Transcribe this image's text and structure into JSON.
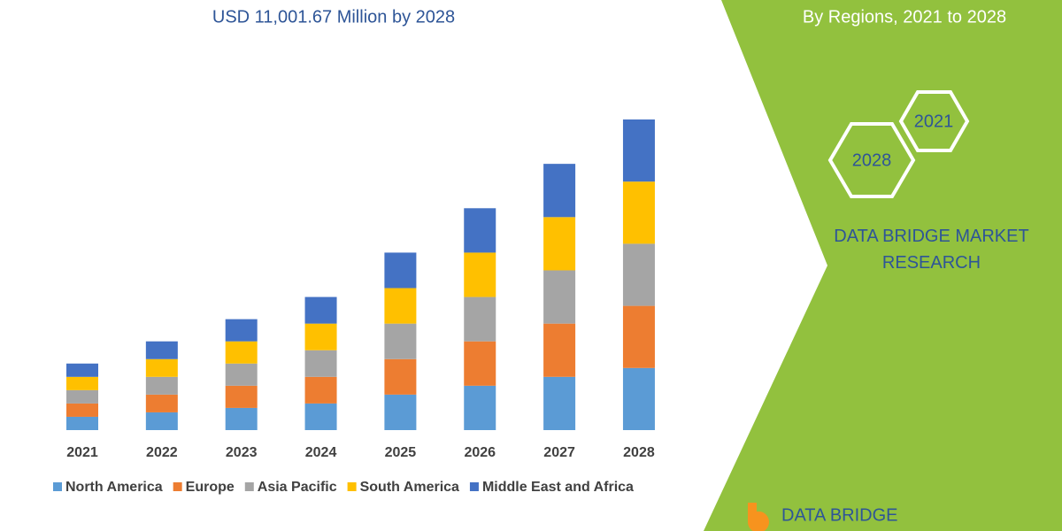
{
  "chart_data": {
    "type": "stacked_bar",
    "title": "USD 11,001.67 Million by 2028",
    "categories": [
      "2021",
      "2022",
      "2023",
      "2024",
      "2025",
      "2026",
      "2027",
      "2028"
    ],
    "series": [
      {
        "name": "North America",
        "color": "#5b9bd5",
        "values": [
          15,
          20,
          25,
          30,
          40,
          50,
          60,
          70
        ]
      },
      {
        "name": "Europe",
        "color": "#ed7d31",
        "values": [
          15,
          20,
          25,
          30,
          40,
          50,
          60,
          70
        ]
      },
      {
        "name": "Asia Pacific",
        "color": "#a5a5a5",
        "values": [
          15,
          20,
          25,
          30,
          40,
          50,
          60,
          70
        ]
      },
      {
        "name": "South America",
        "color": "#ffc000",
        "values": [
          15,
          20,
          25,
          30,
          40,
          50,
          60,
          70
        ]
      },
      {
        "name": "Middle East and Africa",
        "color": "#4472c4",
        "values": [
          15,
          20,
          25,
          30,
          40,
          50,
          60,
          70
        ]
      }
    ]
  },
  "side_panel": {
    "subtitle": "By Regions, 2021 to 2028",
    "hex_top": "2021",
    "hex_bottom": "2028",
    "brand": "DATA BRIDGE MARKET RESEARCH",
    "logo": "DATA BRIDGE"
  }
}
